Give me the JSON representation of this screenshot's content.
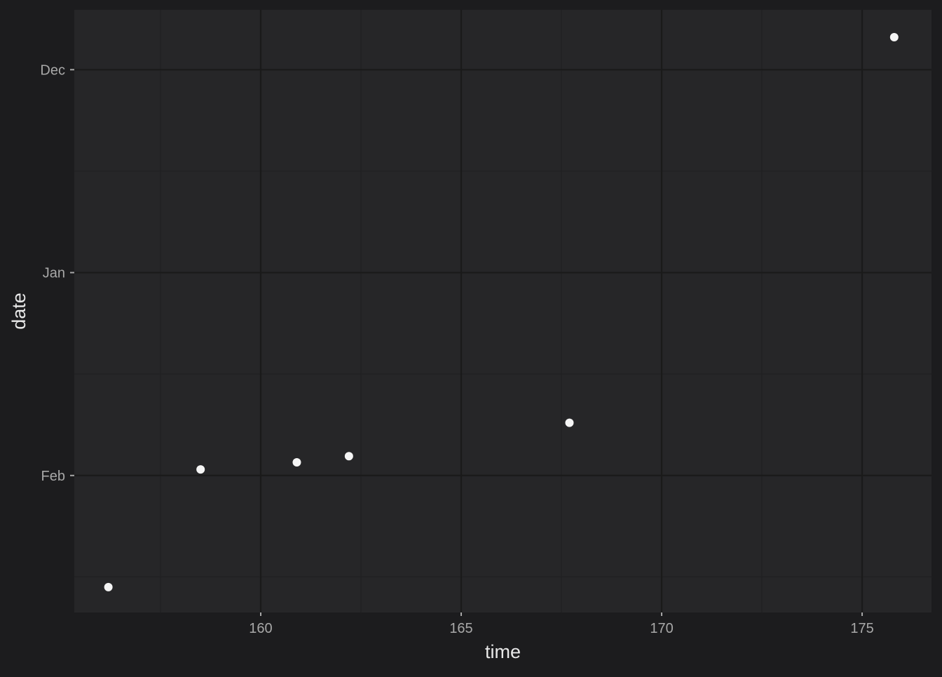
{
  "colors": {
    "background": "#1c1c1e",
    "panel": "#262628",
    "grid_major": "#1a1a1a",
    "grid_minor": "#202022",
    "tick_text": "#a8a8a8",
    "axis_title": "#e8e8e8",
    "point": "#f5f5f5"
  },
  "chart_data": {
    "type": "scatter",
    "title": "",
    "xlabel": "time",
    "ylabel": "date",
    "x_ticks": [
      160,
      165,
      170,
      175
    ],
    "x_tick_labels": [
      "160",
      "165",
      "170",
      "175"
    ],
    "y_ticks": [
      0,
      1,
      2
    ],
    "y_tick_labels": [
      "Feb",
      "Jan",
      "Dec"
    ],
    "xlim": [
      155.35,
      176.73
    ],
    "ylim": [
      -0.675,
      2.295
    ],
    "grid": true,
    "legend": "none",
    "points": [
      {
        "x": 156.2,
        "y": -0.55
      },
      {
        "x": 158.5,
        "y": 0.03
      },
      {
        "x": 160.9,
        "y": 0.065
      },
      {
        "x": 162.2,
        "y": 0.095
      },
      {
        "x": 167.7,
        "y": 0.26
      },
      {
        "x": 175.8,
        "y": 2.16
      }
    ]
  }
}
